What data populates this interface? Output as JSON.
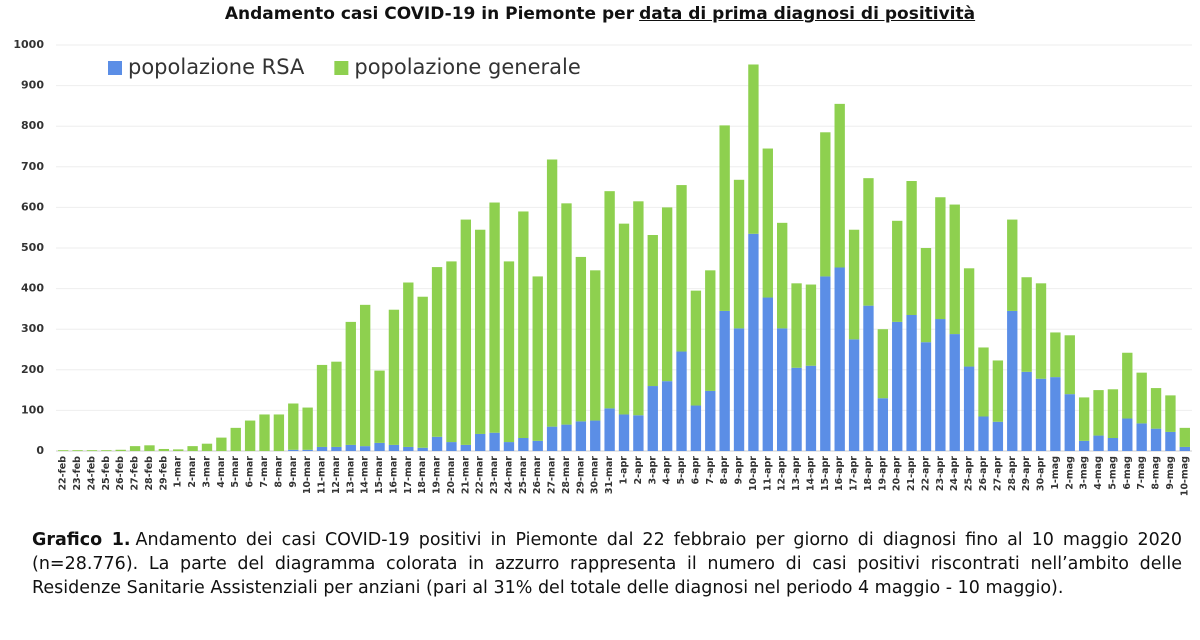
{
  "chart_data": {
    "type": "stacked-bar",
    "title": "Andamento casi COVID-19 in Piemonte per",
    "title_underlined": "data di prima diagnosi di positività",
    "categories": [
      "22-feb",
      "23-feb",
      "24-feb",
      "25-feb",
      "26-feb",
      "27-feb",
      "28-feb",
      "29-feb",
      "1-mar",
      "2-mar",
      "3-mar",
      "4-mar",
      "5-mar",
      "6-mar",
      "7-mar",
      "8-mar",
      "9-mar",
      "10-mar",
      "11-mar",
      "12-mar",
      "13-mar",
      "14-mar",
      "15-mar",
      "16-mar",
      "17-mar",
      "18-mar",
      "19-mar",
      "20-mar",
      "21-mar",
      "22-mar",
      "23-mar",
      "24-mar",
      "25-mar",
      "26-mar",
      "27-mar",
      "28-mar",
      "29-mar",
      "30-mar",
      "31-mar",
      "1-apr",
      "2-apr",
      "3-apr",
      "4-apr",
      "5-apr",
      "6-apr",
      "7-apr",
      "8-apr",
      "9-apr",
      "10-apr",
      "11-apr",
      "12-apr",
      "13-apr",
      "14-apr",
      "15-apr",
      "16-apr",
      "17-apr",
      "18-apr",
      "19-apr",
      "20-apr",
      "21-apr",
      "22-apr",
      "23-apr",
      "24-apr",
      "25-apr",
      "26-apr",
      "27-apr",
      "28-apr",
      "29-apr",
      "30-apr",
      "1-mag",
      "2-mag",
      "3-mag",
      "4-mag",
      "5-mag",
      "6-mag",
      "7-mag",
      "8-mag",
      "9-mag",
      "10-mag"
    ],
    "series": [
      {
        "name": "popolazione RSA",
        "color": "#5b8ee6",
        "values": [
          0,
          0,
          0,
          0,
          0,
          0,
          0,
          0,
          0,
          0,
          0,
          0,
          0,
          0,
          0,
          0,
          3,
          3,
          10,
          10,
          15,
          12,
          20,
          15,
          10,
          8,
          35,
          22,
          15,
          42,
          45,
          22,
          32,
          25,
          60,
          65,
          73,
          75,
          105,
          90,
          88,
          160,
          172,
          245,
          112,
          148,
          345,
          302,
          535,
          378,
          302,
          205,
          210,
          430,
          452,
          275,
          358,
          130,
          318,
          335,
          268,
          325,
          288,
          208,
          85,
          72,
          345,
          195,
          178,
          182,
          140,
          25,
          38,
          32,
          80,
          68,
          55,
          47,
          10
        ]
      },
      {
        "name": "popolazione generale",
        "color": "#8ed04f",
        "values": [
          2,
          2,
          2,
          2,
          3,
          12,
          14,
          5,
          4,
          12,
          18,
          33,
          57,
          75,
          90,
          90,
          114,
          104,
          202,
          210,
          303,
          348,
          178,
          333,
          405,
          372,
          418,
          445,
          555,
          503,
          567,
          445,
          558,
          405,
          658,
          545,
          405,
          370,
          535,
          470,
          527,
          372,
          428,
          410,
          283,
          297,
          457,
          366,
          417,
          367,
          260,
          208,
          200,
          355,
          403,
          270,
          314,
          170,
          249,
          330,
          232,
          300,
          319,
          242,
          170,
          151,
          225,
          233,
          235,
          110,
          145,
          107,
          112,
          120,
          162,
          125,
          100,
          90,
          47
        ]
      }
    ],
    "ylim": [
      0,
      1000
    ],
    "yticks": [
      0,
      100,
      200,
      300,
      400,
      500,
      600,
      700,
      800,
      900,
      1000
    ],
    "grid": true,
    "legend": "upper left"
  },
  "caption": {
    "label": "Grafico 1.",
    "text": "Andamento dei casi COVID-19 positivi in Piemonte dal 22 febbraio per giorno di diagnosi fino al 10 maggio 2020 (n=28.776). La parte del diagramma colorata in azzurro rappresenta il numero di casi positivi riscontrati nell’ambito delle Residenze Sanitarie Assistenziali per anziani (pari al 31% del totale delle diagnosi nel periodo 4 maggio - 10 maggio)."
  }
}
